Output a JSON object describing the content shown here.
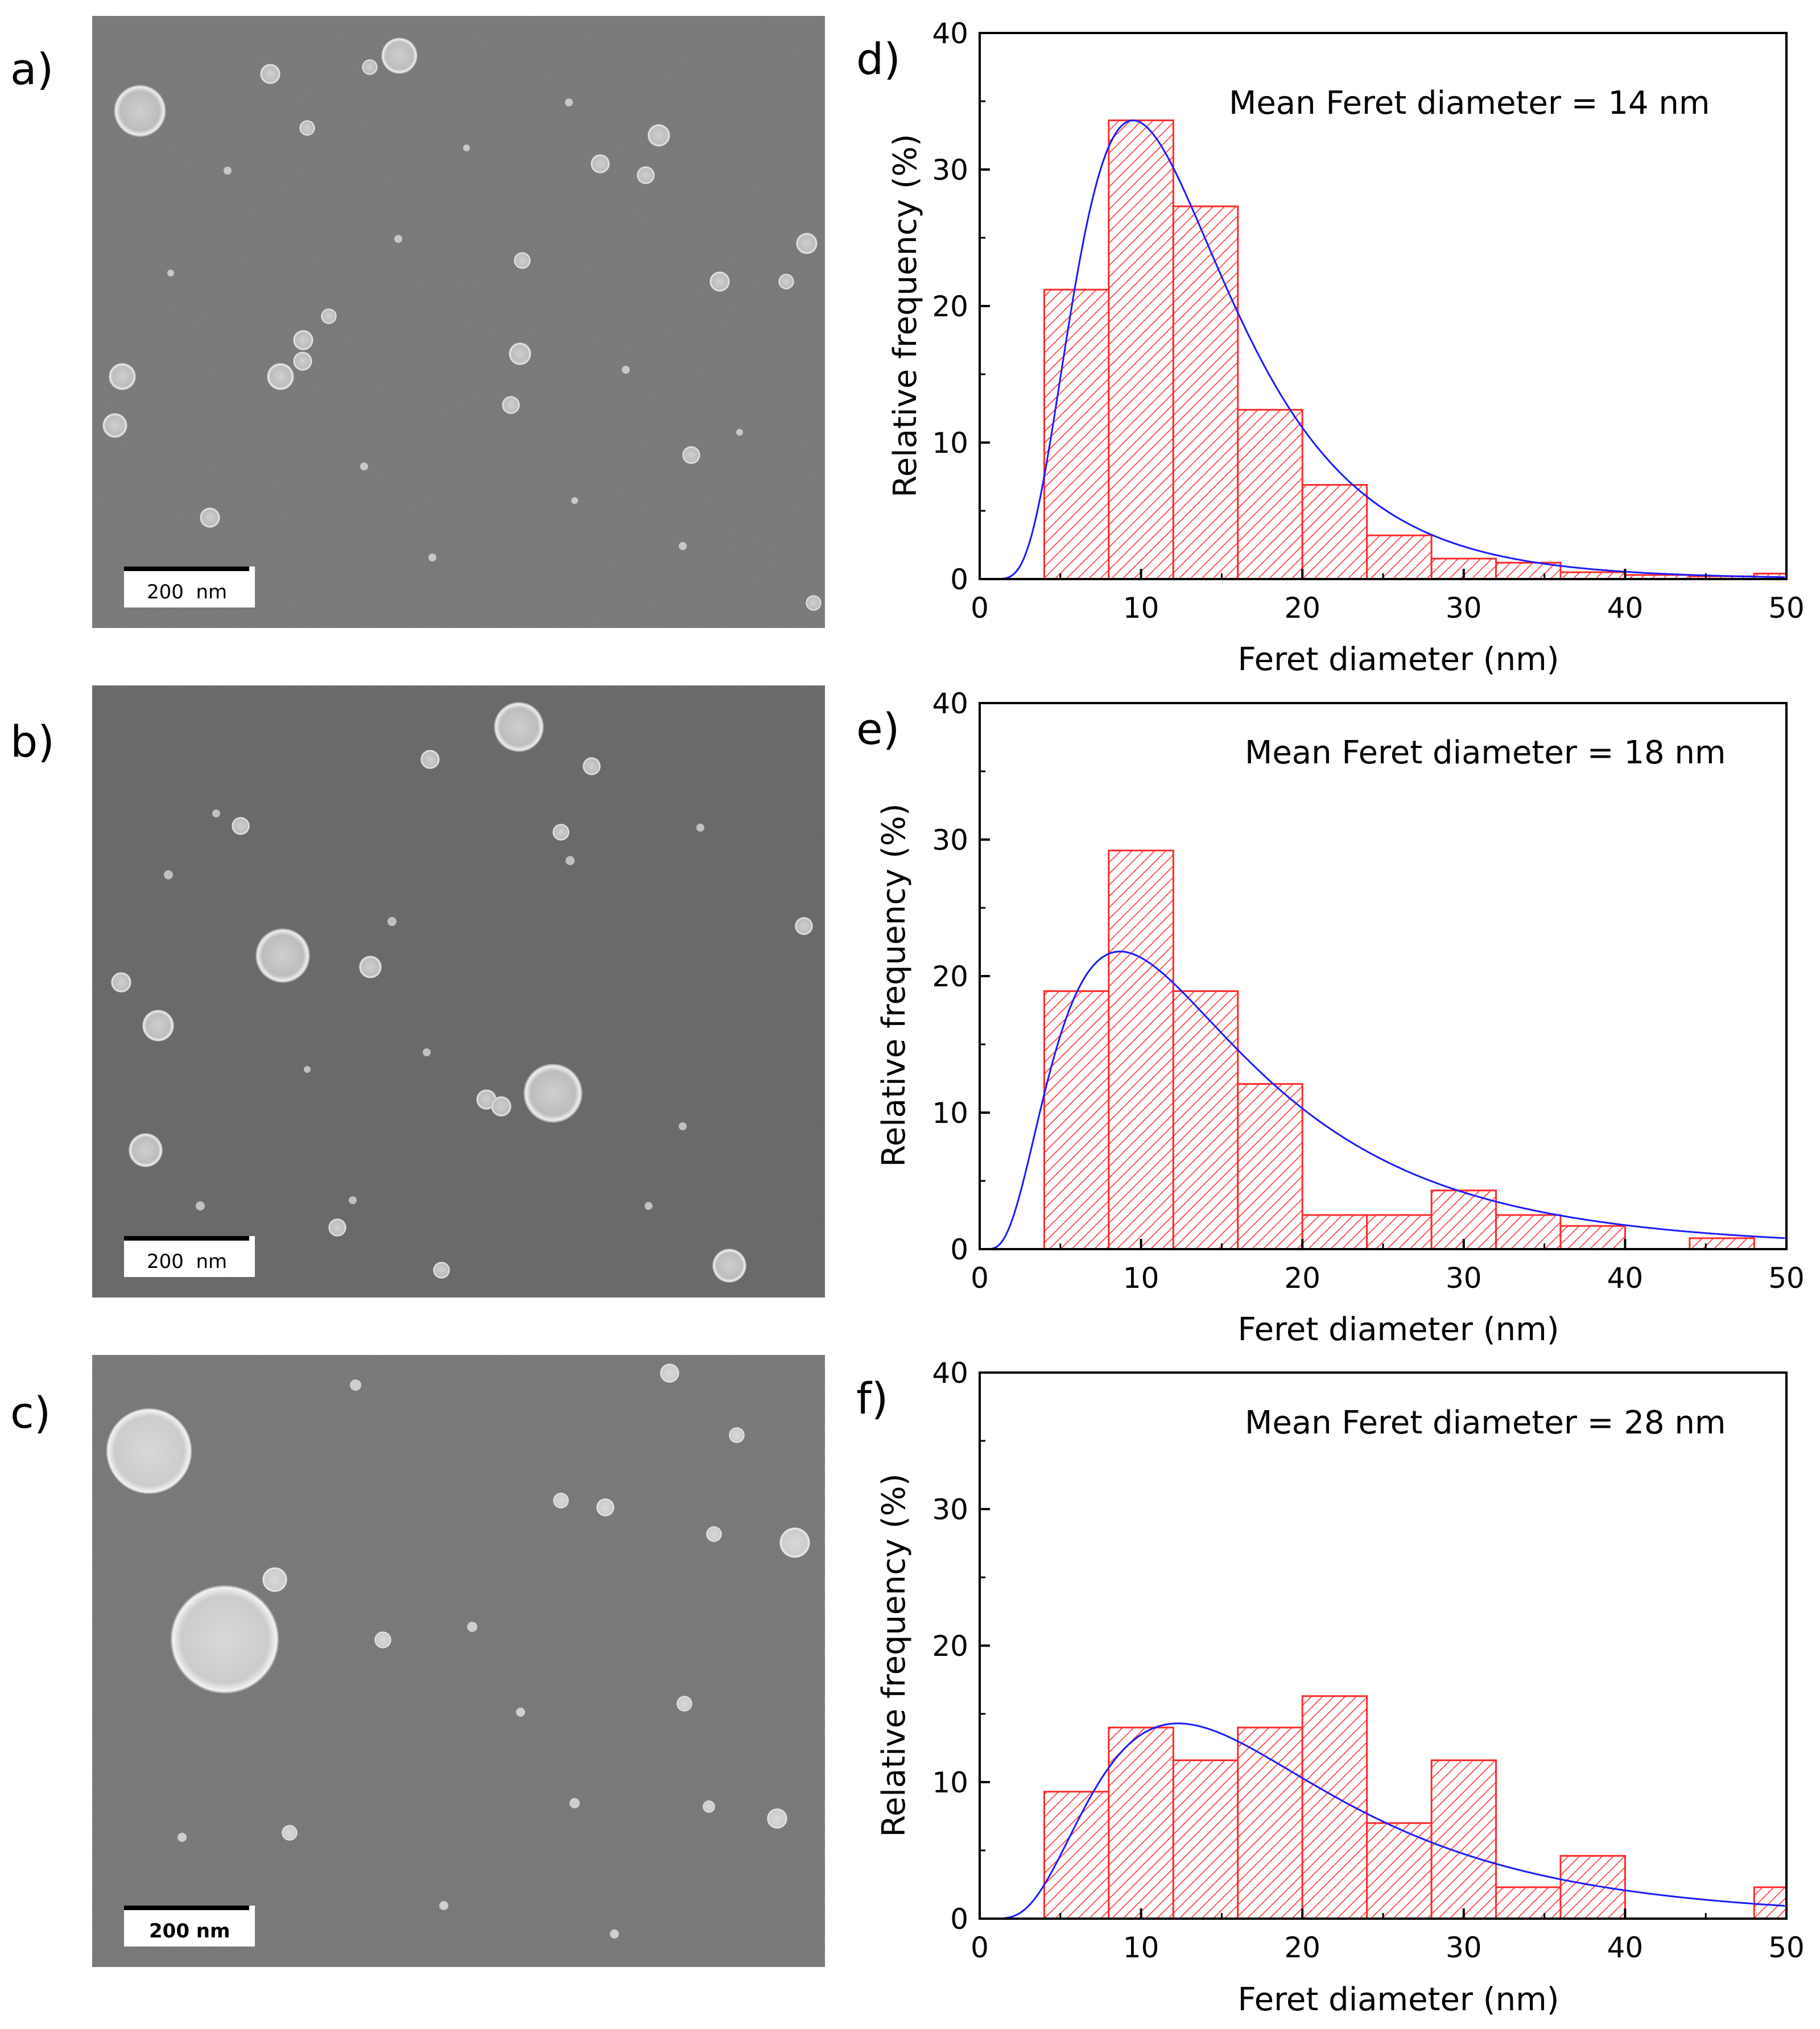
{
  "figure": {
    "sem_panels": [
      {
        "panel": "a)",
        "scale_bar_label": "200  nm"
      },
      {
        "panel": "b)",
        "scale_bar_label": "200  nm"
      },
      {
        "panel": "c)",
        "scale_bar_label": "200 nm"
      }
    ]
  },
  "colors": {
    "bar": "#ff2a2a",
    "fit": "#1a1aff",
    "sem_bg_a": "#6e6e6e",
    "sem_bg_b": "#5c5c5c",
    "sem_bg_c": "#545454"
  },
  "chart_data": [
    {
      "panel": "d)",
      "type": "bar",
      "style": "histogram with hatched red bars and blue log-normal fit curve",
      "annotation": "Mean Feret diameter = 14 nm",
      "xlabel": "Feret diameter (nm)",
      "ylabel": "Relative frequency (%)",
      "xlim": [
        0,
        50
      ],
      "ylim": [
        0,
        40
      ],
      "xticks": [
        0,
        10,
        20,
        30,
        40,
        50
      ],
      "yticks": [
        0,
        10,
        20,
        30,
        40
      ],
      "bin_edges": [
        4,
        8,
        12,
        16,
        20,
        24,
        28,
        32,
        36,
        40,
        44,
        48,
        50
      ],
      "values": [
        21.2,
        33.6,
        27.3,
        12.4,
        6.9,
        3.2,
        1.5,
        1.2,
        0.5,
        0.3,
        0.2,
        0.4
      ],
      "fit": {
        "type": "lognormal",
        "mode_x": 9.5,
        "peak_y": 33.6,
        "sigma": 0.5
      }
    },
    {
      "panel": "e)",
      "type": "bar",
      "style": "histogram with hatched red bars and blue log-normal fit curve",
      "annotation": "Mean Feret diameter = 18 nm",
      "xlabel": "Feret diameter (nm)",
      "ylabel": "Relative frequency (%)",
      "xlim": [
        0,
        50
      ],
      "ylim": [
        0,
        40
      ],
      "xticks": [
        0,
        10,
        20,
        30,
        40,
        50
      ],
      "yticks": [
        0,
        10,
        20,
        30,
        40
      ],
      "bin_edges": [
        4,
        8,
        12,
        16,
        20,
        24,
        28,
        32,
        36,
        40,
        44,
        48
      ],
      "values": [
        18.9,
        29.2,
        18.9,
        12.1,
        2.5,
        2.5,
        4.3,
        2.5,
        1.7,
        0,
        0.8
      ],
      "fit": {
        "type": "lognormal",
        "mode_x": 8.7,
        "peak_y": 21.8,
        "sigma": 0.68
      }
    },
    {
      "panel": "f)",
      "type": "bar",
      "style": "histogram with hatched red bars and blue log-normal fit curve",
      "annotation": "Mean Feret diameter = 28 nm",
      "xlabel": "Feret diameter (nm)",
      "ylabel": "Relative frequency (%)",
      "xlim": [
        0,
        50
      ],
      "ylim": [
        0,
        40
      ],
      "xticks": [
        0,
        10,
        20,
        30,
        40,
        50
      ],
      "yticks": [
        0,
        10,
        20,
        30,
        40
      ],
      "bin_edges": [
        4,
        8,
        12,
        16,
        20,
        24,
        28,
        32,
        36,
        40,
        44,
        48,
        50
      ],
      "values": [
        9.3,
        14.0,
        11.6,
        14.0,
        16.3,
        7.0,
        11.6,
        2.3,
        4.6,
        0,
        0,
        2.3
      ],
      "fit": {
        "type": "lognormal",
        "mode_x": 12.3,
        "peak_y": 14.3,
        "sigma": 0.6
      }
    }
  ]
}
